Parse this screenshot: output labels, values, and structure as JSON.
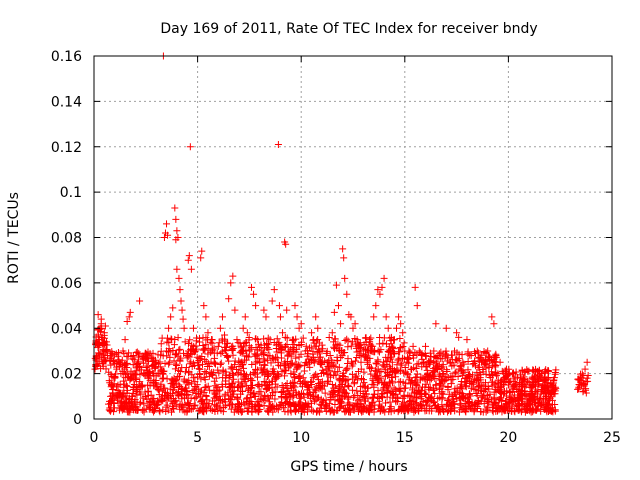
{
  "chart_data": {
    "type": "scatter",
    "title": "Day 169 of 2011, Rate Of TEC Index for receiver bndy",
    "xlabel": "GPS time / hours",
    "ylabel": "ROTI / TECUs",
    "xlim": [
      0,
      25
    ],
    "ylim": [
      0,
      0.16
    ],
    "x_ticks": [
      0,
      5,
      10,
      15,
      20,
      25
    ],
    "x_tick_labels": [
      "0",
      "5",
      "10",
      "15",
      "20",
      "25"
    ],
    "y_ticks": [
      0,
      0.02,
      0.04,
      0.06,
      0.08,
      0.1,
      0.12,
      0.14,
      0.16
    ],
    "y_tick_labels": [
      "0",
      "0.02",
      "0.04",
      "0.06",
      "0.08",
      "0.1",
      "0.12",
      "0.14",
      "0.16"
    ],
    "grid": true,
    "marker": "+",
    "color": "#ff0000",
    "series": [
      {
        "points": [
          [
            0.05,
            0.022
          ],
          [
            0.1,
            0.026
          ],
          [
            0.15,
            0.033
          ],
          [
            0.2,
            0.037
          ],
          [
            0.25,
            0.035
          ],
          [
            0.3,
            0.04
          ],
          [
            0.35,
            0.042
          ],
          [
            0.4,
            0.036
          ],
          [
            0.45,
            0.03
          ],
          [
            0.5,
            0.038
          ],
          [
            0.55,
            0.041
          ],
          [
            0.6,
            0.034
          ],
          [
            0.65,
            0.028
          ],
          [
            0.2,
            0.046
          ],
          [
            0.35,
            0.044
          ],
          [
            0.8,
            0.01
          ],
          [
            0.9,
            0.013
          ],
          [
            1.0,
            0.018
          ],
          [
            1.1,
            0.022
          ],
          [
            1.2,
            0.025
          ],
          [
            1.3,
            0.02
          ],
          [
            1.4,
            0.03
          ],
          [
            1.5,
            0.035
          ],
          [
            1.6,
            0.043
          ],
          [
            1.7,
            0.045
          ],
          [
            1.75,
            0.047
          ],
          [
            1.9,
            0.028
          ],
          [
            2.0,
            0.018
          ],
          [
            2.1,
            0.024
          ],
          [
            2.2,
            0.052
          ],
          [
            2.3,
            0.015
          ],
          [
            2.4,
            0.02
          ],
          [
            2.5,
            0.026
          ],
          [
            2.6,
            0.012
          ],
          [
            2.7,
            0.021
          ],
          [
            2.8,
            0.016
          ],
          [
            2.9,
            0.024
          ],
          [
            3.0,
            0.019
          ],
          [
            3.1,
            0.013
          ],
          [
            3.2,
            0.023
          ],
          [
            3.35,
            0.16
          ],
          [
            3.4,
            0.08
          ],
          [
            3.45,
            0.082
          ],
          [
            3.5,
            0.086
          ],
          [
            3.55,
            0.081
          ],
          [
            3.5,
            0.03
          ],
          [
            3.6,
            0.04
          ],
          [
            3.65,
            0.025
          ],
          [
            3.7,
            0.045
          ],
          [
            3.75,
            0.035
          ],
          [
            3.8,
            0.049
          ],
          [
            3.9,
            0.093
          ],
          [
            3.95,
            0.088
          ],
          [
            4.0,
            0.083
          ],
          [
            3.95,
            0.079
          ],
          [
            4.05,
            0.08
          ],
          [
            4.0,
            0.066
          ],
          [
            4.1,
            0.062
          ],
          [
            4.15,
            0.057
          ],
          [
            4.2,
            0.052
          ],
          [
            4.25,
            0.048
          ],
          [
            4.3,
            0.044
          ],
          [
            4.35,
            0.04
          ],
          [
            4.4,
            0.034
          ],
          [
            4.5,
            0.028
          ],
          [
            4.55,
            0.07
          ],
          [
            4.6,
            0.072
          ],
          [
            4.65,
            0.12
          ],
          [
            4.7,
            0.066
          ],
          [
            4.8,
            0.04
          ],
          [
            4.9,
            0.03
          ],
          [
            5.0,
            0.025
          ],
          [
            5.1,
            0.02
          ],
          [
            5.15,
            0.071
          ],
          [
            5.2,
            0.074
          ],
          [
            5.3,
            0.05
          ],
          [
            5.4,
            0.045
          ],
          [
            5.5,
            0.038
          ],
          [
            5.6,
            0.02
          ],
          [
            5.7,
            0.03
          ],
          [
            5.8,
            0.025
          ],
          [
            5.9,
            0.018
          ],
          [
            6.0,
            0.032
          ],
          [
            6.1,
            0.04
          ],
          [
            6.2,
            0.045
          ],
          [
            6.3,
            0.037
          ],
          [
            6.4,
            0.028
          ],
          [
            6.5,
            0.053
          ],
          [
            6.6,
            0.06
          ],
          [
            6.7,
            0.063
          ],
          [
            6.8,
            0.048
          ],
          [
            6.9,
            0.035
          ],
          [
            7.0,
            0.025
          ],
          [
            7.1,
            0.032
          ],
          [
            7.2,
            0.04
          ],
          [
            7.3,
            0.045
          ],
          [
            7.4,
            0.038
          ],
          [
            7.5,
            0.03
          ],
          [
            7.6,
            0.058
          ],
          [
            7.7,
            0.055
          ],
          [
            7.8,
            0.05
          ],
          [
            7.9,
            0.035
          ],
          [
            8.0,
            0.025
          ],
          [
            8.1,
            0.03
          ],
          [
            8.2,
            0.048
          ],
          [
            8.3,
            0.045
          ],
          [
            8.4,
            0.028
          ],
          [
            8.5,
            0.035
          ],
          [
            8.6,
            0.052
          ],
          [
            8.7,
            0.057
          ],
          [
            8.9,
            0.121
          ],
          [
            8.95,
            0.05
          ],
          [
            9.0,
            0.045
          ],
          [
            9.1,
            0.038
          ],
          [
            9.2,
            0.078
          ],
          [
            9.25,
            0.077
          ],
          [
            9.3,
            0.048
          ],
          [
            9.4,
            0.03
          ],
          [
            9.5,
            0.02
          ],
          [
            9.6,
            0.035
          ],
          [
            9.7,
            0.05
          ],
          [
            9.8,
            0.045
          ],
          [
            9.9,
            0.04
          ],
          [
            10.0,
            0.042
          ],
          [
            10.2,
            0.03
          ],
          [
            10.4,
            0.025
          ],
          [
            10.5,
            0.038
          ],
          [
            10.6,
            0.035
          ],
          [
            10.7,
            0.045
          ],
          [
            10.8,
            0.04
          ],
          [
            10.9,
            0.03
          ],
          [
            11.0,
            0.03
          ],
          [
            11.2,
            0.022
          ],
          [
            11.4,
            0.028
          ],
          [
            11.5,
            0.038
          ],
          [
            11.6,
            0.047
          ],
          [
            11.7,
            0.059
          ],
          [
            11.8,
            0.05
          ],
          [
            11.9,
            0.042
          ],
          [
            12.0,
            0.075
          ],
          [
            12.05,
            0.071
          ],
          [
            12.1,
            0.062
          ],
          [
            12.2,
            0.055
          ],
          [
            12.3,
            0.046
          ],
          [
            12.4,
            0.045
          ],
          [
            12.5,
            0.04
          ],
          [
            12.6,
            0.042
          ],
          [
            12.7,
            0.035
          ],
          [
            12.8,
            0.028
          ],
          [
            12.9,
            0.022
          ],
          [
            13.0,
            0.03
          ],
          [
            13.2,
            0.025
          ],
          [
            13.3,
            0.035
          ],
          [
            13.4,
            0.03
          ],
          [
            13.5,
            0.045
          ],
          [
            13.6,
            0.05
          ],
          [
            13.7,
            0.057
          ],
          [
            13.8,
            0.055
          ],
          [
            13.9,
            0.058
          ],
          [
            14.0,
            0.062
          ],
          [
            14.1,
            0.045
          ],
          [
            14.2,
            0.04
          ],
          [
            14.3,
            0.03
          ],
          [
            14.4,
            0.025
          ],
          [
            14.5,
            0.035
          ],
          [
            14.6,
            0.04
          ],
          [
            14.7,
            0.045
          ],
          [
            14.8,
            0.042
          ],
          [
            14.9,
            0.038
          ],
          [
            15.0,
            0.03
          ],
          [
            15.1,
            0.025
          ],
          [
            15.2,
            0.03
          ],
          [
            15.3,
            0.022
          ],
          [
            15.4,
            0.032
          ],
          [
            15.5,
            0.058
          ],
          [
            15.6,
            0.05
          ],
          [
            15.7,
            0.03
          ],
          [
            15.8,
            0.028
          ],
          [
            15.9,
            0.025
          ],
          [
            16.0,
            0.032
          ],
          [
            16.2,
            0.025
          ],
          [
            16.4,
            0.03
          ],
          [
            16.5,
            0.042
          ],
          [
            16.6,
            0.028
          ],
          [
            16.8,
            0.023
          ],
          [
            17.0,
            0.04
          ],
          [
            17.2,
            0.025
          ],
          [
            17.4,
            0.03
          ],
          [
            17.5,
            0.038
          ],
          [
            17.6,
            0.036
          ],
          [
            17.8,
            0.025
          ],
          [
            18.0,
            0.035
          ],
          [
            18.2,
            0.028
          ],
          [
            18.5,
            0.03
          ],
          [
            18.7,
            0.025
          ],
          [
            19.0,
            0.03
          ],
          [
            19.2,
            0.045
          ],
          [
            19.3,
            0.042
          ],
          [
            19.4,
            0.028
          ],
          [
            19.6,
            0.025
          ],
          [
            19.8,
            0.018
          ],
          [
            20.0,
            0.015
          ],
          [
            20.2,
            0.02
          ],
          [
            20.4,
            0.013
          ],
          [
            20.6,
            0.018
          ],
          [
            20.8,
            0.012
          ],
          [
            21.0,
            0.01
          ],
          [
            21.2,
            0.015
          ],
          [
            21.4,
            0.011
          ],
          [
            21.6,
            0.013
          ],
          [
            21.8,
            0.01
          ],
          [
            22.0,
            0.012
          ],
          [
            22.2,
            0.013
          ],
          [
            23.4,
            0.014
          ],
          [
            23.5,
            0.016
          ],
          [
            23.6,
            0.018
          ],
          [
            23.7,
            0.022
          ],
          [
            23.8,
            0.025
          ],
          [
            23.6,
            0.012
          ],
          [
            23.8,
            0.018
          ]
        ]
      }
    ],
    "dense_band": {
      "x_range": [
        0.7,
        22.3
      ],
      "y_range": [
        0.003,
        0.03
      ],
      "description_note": ""
    }
  }
}
